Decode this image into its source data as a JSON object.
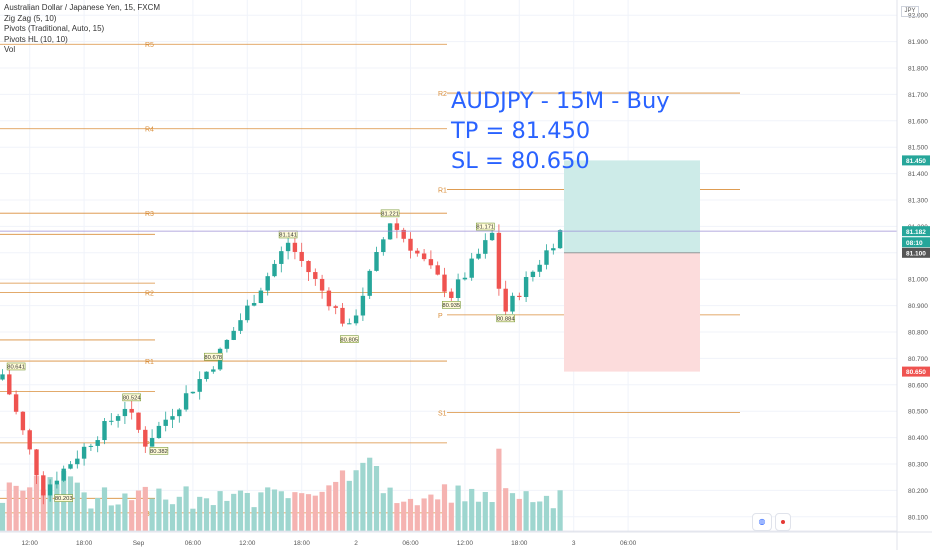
{
  "legend": {
    "symbol": "Australian Dollar / Japanese Yen, 15, FXCM",
    "ind1": "Zig Zag (5, 10)",
    "ind2": "Pivots (Traditional, Auto, 15)",
    "ind3": "Pivots HL (10, 10)",
    "ind4": "Vol"
  },
  "overlay": {
    "line1": "AUDJPY - 15M - Buy",
    "line2": "TP = 81.450",
    "line3": "SL = 80.650"
  },
  "currency_label": "JPY",
  "colors": {
    "up": "#26a69a",
    "down": "#ef5350",
    "pivot": "#d98e3a",
    "text_blue": "#2962ff",
    "target_fill": "#cdebe8",
    "stop_fill": "#fcdcdc"
  },
  "chart_data": {
    "type": "candlestick",
    "symbol": "AUDJPY",
    "timeframe": "15",
    "ylim": [
      80.05,
      82.05
    ],
    "y_ticks": [
      82.0,
      81.9,
      81.8,
      81.7,
      81.6,
      81.5,
      81.4,
      81.3,
      81.2,
      81.1,
      81.0,
      80.9,
      80.8,
      80.7,
      80.6,
      80.5,
      80.4,
      80.3,
      80.2,
      80.1
    ],
    "y_tick_labels": [
      "82.000",
      "81.900",
      "81.800",
      "81.700",
      "81.600",
      "81.500",
      "81.400",
      "81.300",
      "81.200",
      "81.100",
      "81.000",
      "80.900",
      "80.800",
      "80.700",
      "80.600",
      "80.500",
      "80.400",
      "80.300",
      "80.200",
      "80.100"
    ],
    "x_labels": [
      "12:00",
      "18:00",
      "Sep",
      "06:00",
      "12:00",
      "18:00",
      "2",
      "06:00",
      "12:00",
      "18:00",
      "3",
      "06:00"
    ],
    "x_label_bar_index": [
      4,
      12,
      20,
      28,
      36,
      44,
      52,
      60,
      68,
      76,
      84,
      92
    ],
    "price_labels": [
      {
        "text": "81.450",
        "value": 81.45,
        "color": "#26a69a"
      },
      {
        "text": "81.182",
        "value": 81.182,
        "color": "#26a69a"
      },
      {
        "text": "08:10",
        "value": 81.14,
        "color": "#26a69a"
      },
      {
        "text": "81.100",
        "value": 81.1,
        "color": "#555555"
      },
      {
        "text": "80.650",
        "value": 80.65,
        "color": "#ef5350"
      }
    ],
    "current_price": 81.182,
    "pivot_levels_prev": [
      {
        "label": "R5",
        "value": 81.89
      },
      {
        "label": "R4",
        "value": 81.57
      },
      {
        "label": "R3",
        "value": 81.25
      },
      {
        "label": "R2",
        "value": 80.95
      },
      {
        "label": "R1",
        "value": 80.69
      },
      {
        "label": "P",
        "value": 80.38
      },
      {
        "label": "S1",
        "value": 80.115
      }
    ],
    "pivot_levels_cur": [
      {
        "label": "R2",
        "value": 81.705
      },
      {
        "label": "R1",
        "value": 81.34
      },
      {
        "label": "P",
        "value": 80.865
      },
      {
        "label": "S1",
        "value": 80.495
      }
    ],
    "zigzag_labels": [
      {
        "text": "80.641",
        "value": 80.641
      },
      {
        "text": "80.203",
        "value": 80.203
      },
      {
        "text": "80.524",
        "value": 80.524
      },
      {
        "text": "80.382",
        "value": 80.382
      },
      {
        "text": "80.678",
        "value": 80.678
      },
      {
        "text": "81.141",
        "value": 81.141
      },
      {
        "text": "80.805",
        "value": 80.805
      },
      {
        "text": "81.221",
        "value": 81.221
      },
      {
        "text": "80.935",
        "value": 80.935
      },
      {
        "text": "81.171",
        "value": 81.171
      },
      {
        "text": "80.884",
        "value": 80.884
      }
    ],
    "position": {
      "side": "Buy",
      "entry": 81.1,
      "take_profit": 81.45,
      "stop_loss": 80.65
    }
  }
}
